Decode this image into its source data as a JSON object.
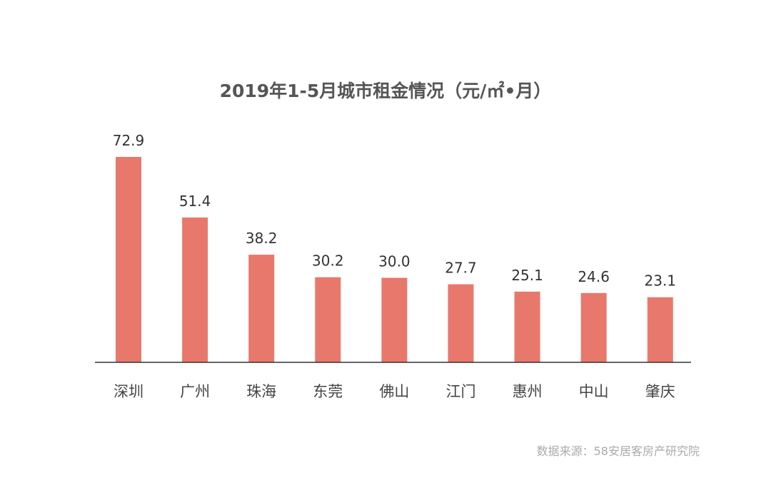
{
  "chart_data": {
    "type": "bar",
    "title": "2019年1-5月城市租金情况（元/㎡•月）",
    "categories": [
      "深圳",
      "广州",
      "珠海",
      "东莞",
      "佛山",
      "江门",
      "惠州",
      "中山",
      "肇庆"
    ],
    "values": [
      72.9,
      51.4,
      38.2,
      30.2,
      30.0,
      27.7,
      25.1,
      24.6,
      23.1
    ],
    "value_labels": [
      "72.9",
      "51.4",
      "38.2",
      "30.2",
      "30.0",
      "27.7",
      "25.1",
      "24.6",
      "23.1"
    ],
    "xlabel": "",
    "ylabel": "",
    "ylim": [
      0,
      73
    ],
    "grid": false,
    "bar_color": "#e8786c",
    "source": "数据来源：58安居客房产研究院"
  }
}
